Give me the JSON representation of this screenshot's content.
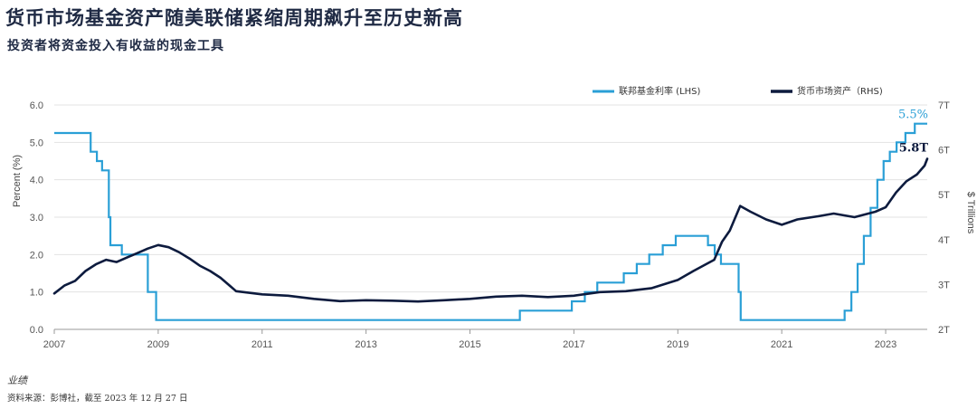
{
  "title": "货币市场基金资产随美联储紧缩周期飙升至历史新高",
  "subtitle": "投资者将资金投入有收益的现金工具",
  "footer": {
    "label": "业绩",
    "source": "资料来源：彭博社，截至 2023 年 12 月 27 日"
  },
  "colors": {
    "fed": "#2a9fd6",
    "mmf": "#0d1b3e",
    "grid": "#e3e3e3"
  },
  "chart_data": {
    "type": "line",
    "title": "货币市场基金资产随美联储紧缩周期飙升至历史新高",
    "xlim": [
      2007.0,
      2023.8
    ],
    "x_ticks": [
      2007,
      2009,
      2011,
      2013,
      2015,
      2017,
      2019,
      2021,
      2023
    ],
    "x_tick_labels": [
      "2007",
      "2009",
      "2011",
      "2013",
      "2015",
      "2017",
      "2019",
      "2021",
      "2023"
    ],
    "left_axis": {
      "label": "Percent (%)",
      "ylim": [
        0,
        6
      ],
      "ticks": [
        0,
        1,
        2,
        3,
        4,
        5,
        6
      ],
      "tick_labels": [
        "0.0",
        "1.0",
        "2.0",
        "3.0",
        "4.0",
        "5.0",
        "6.0"
      ]
    },
    "right_axis": {
      "label": "$ Trillions",
      "ylim": [
        2,
        7
      ],
      "ticks": [
        2,
        3,
        4,
        5,
        6,
        7
      ],
      "tick_labels": [
        "2T",
        "3T",
        "4T",
        "5T",
        "6T",
        "7T"
      ]
    },
    "series": [
      {
        "name": "联邦基金利率 (LHS)",
        "axis": "left",
        "style": "step",
        "end_label": "5.5%",
        "points": [
          [
            2007.0,
            5.25
          ],
          [
            2007.7,
            4.75
          ],
          [
            2007.82,
            4.5
          ],
          [
            2007.92,
            4.25
          ],
          [
            2008.05,
            3.0
          ],
          [
            2008.08,
            2.25
          ],
          [
            2008.3,
            2.0
          ],
          [
            2008.8,
            1.0
          ],
          [
            2008.96,
            0.25
          ],
          [
            2015.96,
            0.5
          ],
          [
            2016.96,
            0.75
          ],
          [
            2017.21,
            1.0
          ],
          [
            2017.45,
            1.25
          ],
          [
            2017.96,
            1.5
          ],
          [
            2018.21,
            1.75
          ],
          [
            2018.45,
            2.0
          ],
          [
            2018.71,
            2.25
          ],
          [
            2018.96,
            2.5
          ],
          [
            2019.58,
            2.25
          ],
          [
            2019.71,
            2.0
          ],
          [
            2019.83,
            1.75
          ],
          [
            2020.17,
            1.0
          ],
          [
            2020.21,
            0.25
          ],
          [
            2022.21,
            0.5
          ],
          [
            2022.34,
            1.0
          ],
          [
            2022.46,
            1.75
          ],
          [
            2022.58,
            2.5
          ],
          [
            2022.71,
            3.25
          ],
          [
            2022.84,
            4.0
          ],
          [
            2022.96,
            4.5
          ],
          [
            2023.08,
            4.75
          ],
          [
            2023.21,
            5.0
          ],
          [
            2023.38,
            5.25
          ],
          [
            2023.56,
            5.5
          ],
          [
            2023.8,
            5.5
          ]
        ]
      },
      {
        "name": "货币市场资产（RHS)",
        "axis": "right",
        "style": "line",
        "end_label": "5.8T",
        "points": [
          [
            2007.0,
            2.8
          ],
          [
            2007.2,
            2.98
          ],
          [
            2007.4,
            3.08
          ],
          [
            2007.6,
            3.3
          ],
          [
            2007.8,
            3.45
          ],
          [
            2008.0,
            3.55
          ],
          [
            2008.2,
            3.5
          ],
          [
            2008.4,
            3.6
          ],
          [
            2008.6,
            3.7
          ],
          [
            2008.8,
            3.8
          ],
          [
            2009.0,
            3.88
          ],
          [
            2009.2,
            3.83
          ],
          [
            2009.4,
            3.72
          ],
          [
            2009.6,
            3.58
          ],
          [
            2009.8,
            3.42
          ],
          [
            2010.0,
            3.3
          ],
          [
            2010.2,
            3.15
          ],
          [
            2010.5,
            2.85
          ],
          [
            2011.0,
            2.78
          ],
          [
            2011.5,
            2.75
          ],
          [
            2012.0,
            2.68
          ],
          [
            2012.5,
            2.63
          ],
          [
            2013.0,
            2.65
          ],
          [
            2013.5,
            2.64
          ],
          [
            2014.0,
            2.62
          ],
          [
            2014.5,
            2.65
          ],
          [
            2015.0,
            2.68
          ],
          [
            2015.5,
            2.73
          ],
          [
            2016.0,
            2.75
          ],
          [
            2016.5,
            2.72
          ],
          [
            2017.0,
            2.75
          ],
          [
            2017.5,
            2.83
          ],
          [
            2018.0,
            2.85
          ],
          [
            2018.5,
            2.92
          ],
          [
            2019.0,
            3.1
          ],
          [
            2019.3,
            3.3
          ],
          [
            2019.7,
            3.55
          ],
          [
            2019.85,
            3.95
          ],
          [
            2020.0,
            4.2
          ],
          [
            2020.2,
            4.75
          ],
          [
            2020.4,
            4.62
          ],
          [
            2020.7,
            4.45
          ],
          [
            2021.0,
            4.33
          ],
          [
            2021.3,
            4.45
          ],
          [
            2021.7,
            4.52
          ],
          [
            2022.0,
            4.58
          ],
          [
            2022.4,
            4.5
          ],
          [
            2022.8,
            4.62
          ],
          [
            2023.0,
            4.72
          ],
          [
            2023.2,
            5.05
          ],
          [
            2023.4,
            5.3
          ],
          [
            2023.6,
            5.45
          ],
          [
            2023.75,
            5.65
          ],
          [
            2023.8,
            5.8
          ]
        ]
      }
    ]
  }
}
